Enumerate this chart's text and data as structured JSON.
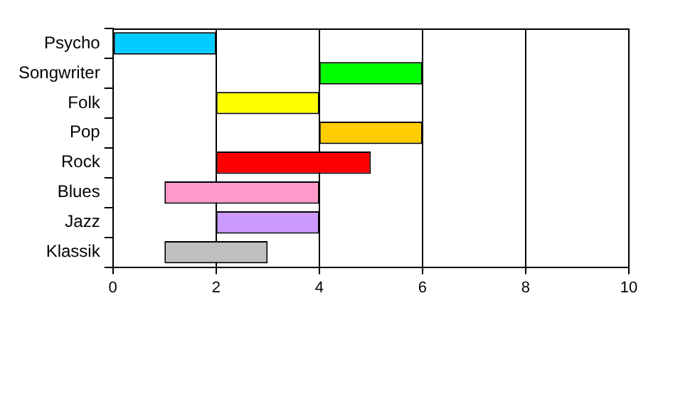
{
  "chart_data": {
    "type": "bar",
    "orientation": "horizontal",
    "categories": [
      "Psycho",
      "Songwriter",
      "Folk",
      "Pop",
      "Rock",
      "Blues",
      "Jazz",
      "Klassik"
    ],
    "base": [
      0,
      4,
      2,
      4,
      2,
      1,
      2,
      1
    ],
    "values": [
      2,
      2,
      2,
      2,
      3,
      3,
      2,
      2
    ],
    "colors": [
      "#00ccff",
      "#00ff00",
      "#ffff00",
      "#ffcc00",
      "#ff0000",
      "#ff99cc",
      "#cc99ff",
      "#c0c0c0"
    ],
    "xlim": [
      0,
      10
    ],
    "xticks": [
      0,
      2,
      4,
      6,
      8,
      10
    ],
    "grid": "x",
    "legend": false
  }
}
